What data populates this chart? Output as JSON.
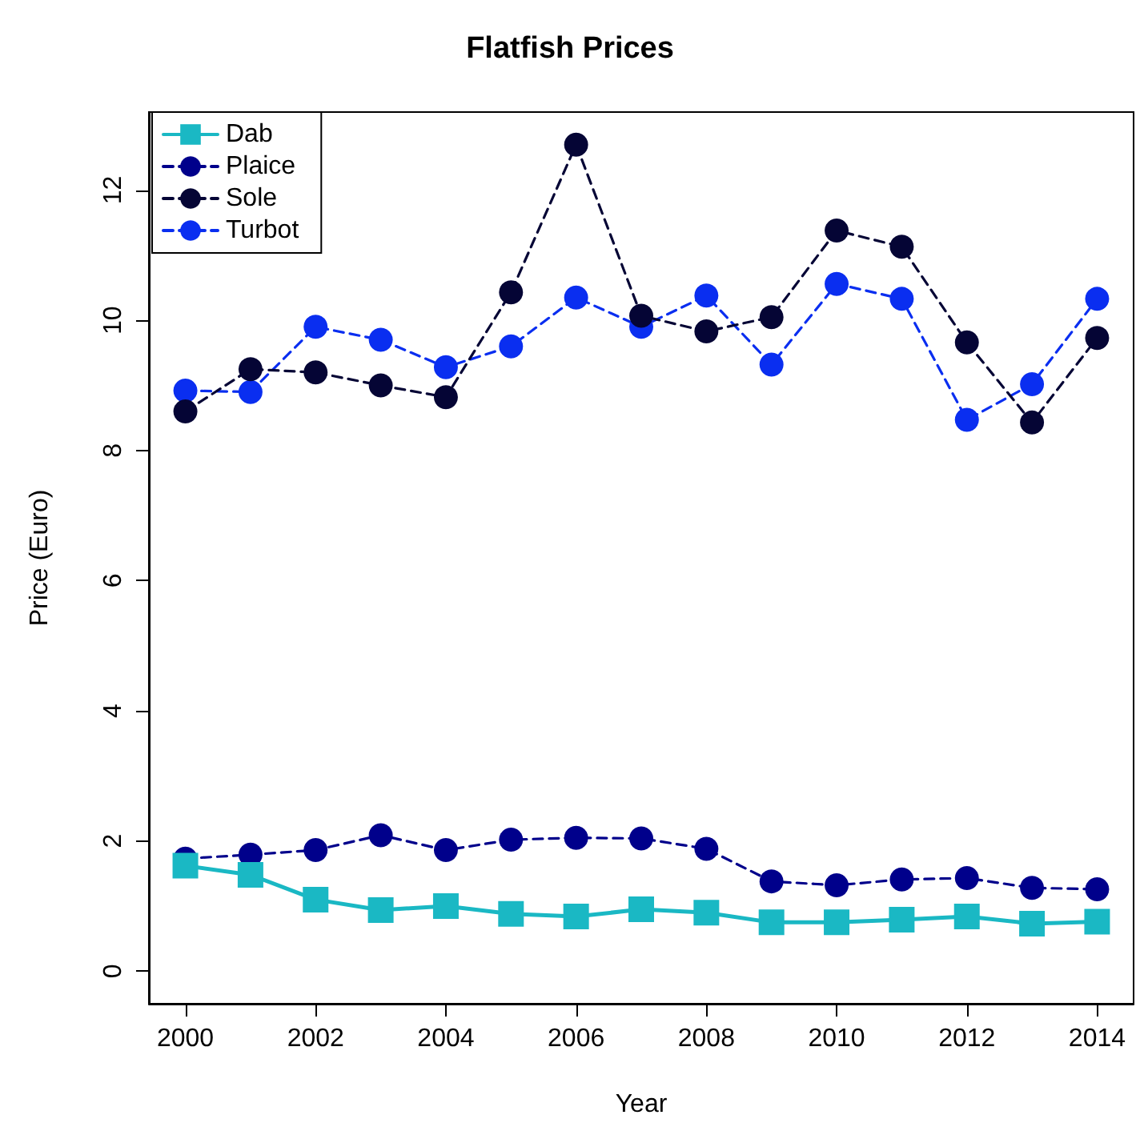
{
  "chart_data": {
    "type": "line",
    "title": "Flatfish Prices",
    "xlabel": "Year",
    "ylabel": "Price (Euro)",
    "x": [
      2000,
      2001,
      2002,
      2003,
      2004,
      2005,
      2006,
      2007,
      2008,
      2009,
      2010,
      2011,
      2012,
      2013,
      2014
    ],
    "xlim": [
      1999.44,
      2014.56
    ],
    "xticks": [
      2000,
      2002,
      2004,
      2006,
      2008,
      2010,
      2012,
      2014
    ],
    "ylim": [
      -0.5,
      13.2
    ],
    "yticks": [
      0,
      2,
      4,
      6,
      8,
      10,
      12
    ],
    "grid": false,
    "legend": "top left",
    "series": [
      {
        "name": "Dab",
        "color": "#1ab8c4",
        "marker": "square",
        "line_style": "solid",
        "values": [
          1.62,
          1.48,
          1.1,
          0.94,
          1.0,
          0.88,
          0.84,
          0.95,
          0.9,
          0.75,
          0.75,
          0.79,
          0.84,
          0.73,
          0.76
        ]
      },
      {
        "name": "Plaice",
        "color": "#00008b",
        "marker": "circle",
        "line_style": "dashed",
        "values": [
          1.73,
          1.79,
          1.86,
          2.09,
          1.86,
          2.02,
          2.05,
          2.04,
          1.88,
          1.38,
          1.32,
          1.41,
          1.43,
          1.28,
          1.26
        ]
      },
      {
        "name": "Sole",
        "color": "#050535",
        "marker": "circle",
        "line_style": "dashed",
        "values": [
          8.6,
          9.25,
          9.2,
          9.0,
          8.82,
          10.43,
          12.7,
          10.07,
          9.83,
          10.05,
          11.38,
          11.13,
          9.66,
          8.43,
          9.73
        ]
      },
      {
        "name": "Turbot",
        "color": "#0a2ef0",
        "marker": "circle",
        "line_style": "dashed",
        "values": [
          8.92,
          8.9,
          9.9,
          9.7,
          9.28,
          9.6,
          10.35,
          9.9,
          10.38,
          9.32,
          10.56,
          10.33,
          8.47,
          9.02,
          10.33
        ]
      }
    ]
  }
}
